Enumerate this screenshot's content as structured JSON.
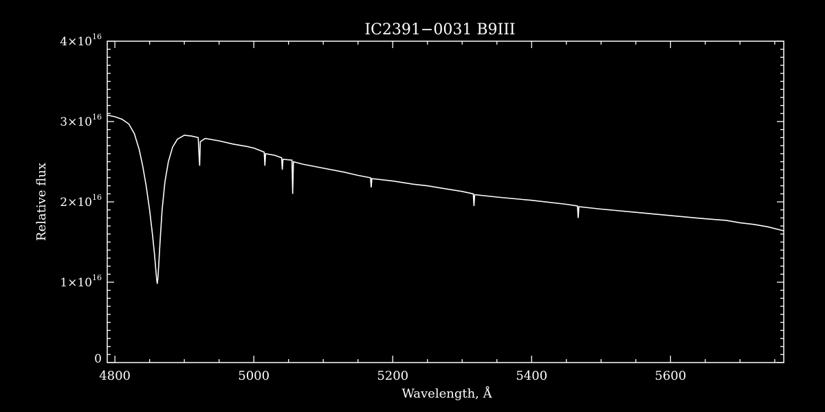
{
  "chart_data": {
    "type": "line",
    "title": "IC2391−0031   B9III",
    "xlabel": "Wavelength, Å",
    "ylabel": "Relative flux",
    "xlim": [
      4789,
      5763
    ],
    "ylim": [
      0,
      4e+16
    ],
    "x_ticks": [
      4800,
      5000,
      5200,
      5400,
      5600
    ],
    "x_tick_labels": [
      "4800",
      "5000",
      "5200",
      "5400",
      "5600"
    ],
    "y_ticks": [
      0,
      1e+16,
      2e+16,
      3e+16,
      4e+16
    ],
    "y_tick_labels": [
      {
        "mant": "0",
        "exp": ""
      },
      {
        "mant": "1×10",
        "exp": "16"
      },
      {
        "mant": "2×10",
        "exp": "16"
      },
      {
        "mant": "3×10",
        "exp": "16"
      },
      {
        "mant": "4×10",
        "exp": "16"
      }
    ],
    "grid": false,
    "colors": {
      "background": "#000000",
      "foreground": "#ffffff"
    },
    "series": [
      {
        "x": [
          4789,
          4800,
          4810,
          4820,
          4828,
          4835,
          4840,
          4845,
          4850,
          4854,
          4857,
          4859,
          4860,
          4861,
          4862,
          4863,
          4865,
          4868,
          4872,
          4877,
          4883,
          4890,
          4900,
          4910,
          4920,
          4921,
          4922,
          4923,
          4930,
          4950,
          4970,
          4990,
          5000,
          5015,
          5016,
          5017,
          5030,
          5040,
          5041,
          5042,
          5055,
          5056,
          5057,
          5070,
          5100,
          5130,
          5150,
          5168,
          5169,
          5170,
          5200,
          5230,
          5250,
          5300,
          5316,
          5317,
          5318,
          5350,
          5400,
          5450,
          5466,
          5467,
          5468,
          5500,
          5550,
          5600,
          5650,
          5680,
          5700,
          5720,
          5740,
          5763
        ],
        "y": [
          3.08e+16,
          3.06e+16,
          3.03e+16,
          2.97e+16,
          2.85e+16,
          2.65e+16,
          2.45e+16,
          2.2e+16,
          1.9e+16,
          1.6e+16,
          1.35e+16,
          1.15e+16,
          1.05e+16,
          9800000000000000.0,
          1.05e+16,
          1.2e+16,
          1.5e+16,
          1.9e+16,
          2.25e+16,
          2.5e+16,
          2.68e+16,
          2.78e+16,
          2.83e+16,
          2.82e+16,
          2.8e+16,
          2.6e+16,
          2.45e+16,
          2.75e+16,
          2.79e+16,
          2.76e+16,
          2.72e+16,
          2.69e+16,
          2.67e+16,
          2.62e+16,
          2.45e+16,
          2.6e+16,
          2.58e+16,
          2.55e+16,
          2.4e+16,
          2.53e+16,
          2.52e+16,
          2.1e+16,
          2.5e+16,
          2.47e+16,
          2.42e+16,
          2.37e+16,
          2.33e+16,
          2.3e+16,
          2.18e+16,
          2.29e+16,
          2.26e+16,
          2.22e+16,
          2.2e+16,
          2.13e+16,
          2.1e+16,
          1.95e+16,
          2.09e+16,
          2.06e+16,
          2.02e+16,
          1.97e+16,
          1.95e+16,
          1.8e+16,
          1.94e+16,
          1.91e+16,
          1.87e+16,
          1.83e+16,
          1.79e+16,
          1.77e+16,
          1.74e+16,
          1.72e+16,
          1.69e+16,
          1.64e+16
        ]
      }
    ]
  }
}
